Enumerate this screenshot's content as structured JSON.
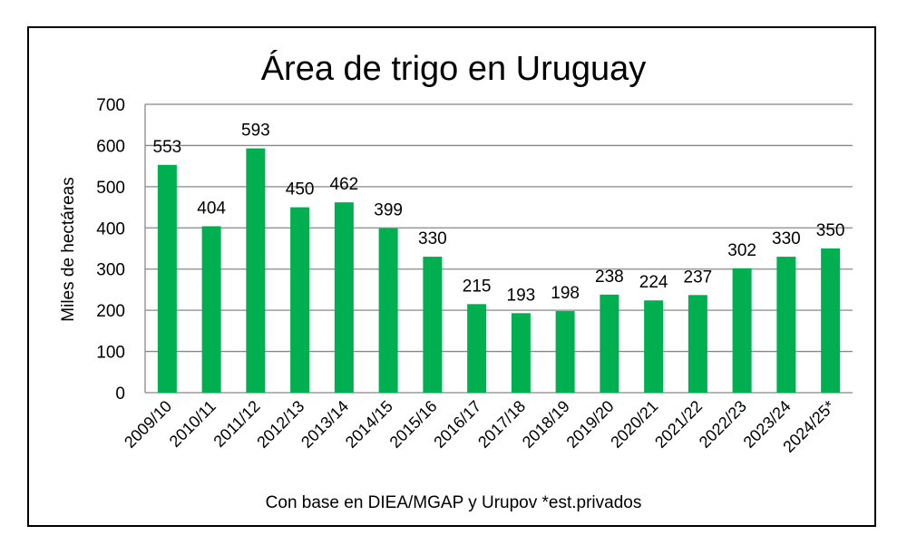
{
  "chart_data": {
    "type": "bar",
    "title": "Área de trigo en Uruguay",
    "xlabel": "",
    "ylabel": "Miles de hectáreas",
    "source": "Con base en DIEA/MGAP y Urupov *est.privados",
    "categories": [
      "2009/10",
      "2010/11",
      "2011/12",
      "2012/13",
      "2013/14",
      "2014/15",
      "2015/16",
      "2016/17",
      "2017/18",
      "2018/19",
      "2019/20",
      "2020/21",
      "2021/22",
      "2022/23",
      "2023/24",
      "2024/25*"
    ],
    "values": [
      553,
      404,
      593,
      450,
      462,
      399,
      330,
      215,
      193,
      198,
      238,
      224,
      237,
      302,
      330,
      350
    ],
    "ylim": [
      0,
      700
    ],
    "yticks": [
      0,
      100,
      200,
      300,
      400,
      500,
      600,
      700
    ],
    "grid": true,
    "bar_color": "#00b050"
  }
}
